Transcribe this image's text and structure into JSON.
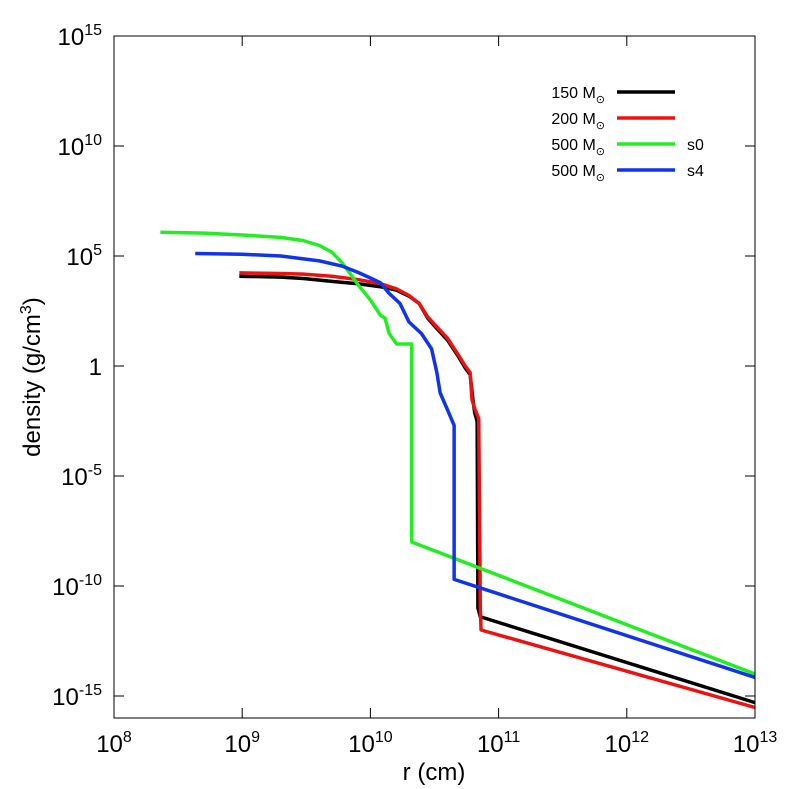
{
  "chart_data": {
    "type": "line",
    "xscale": "log",
    "yscale": "log",
    "xlim": [
      100000000.0,
      10000000000000.0
    ],
    "ylim": [
      1e-16,
      1000000000000000.0
    ],
    "xlabel": "r (cm)",
    "ylabel_pre": "density (g/cm",
    "ylabel_sup": "3",
    "ylabel_post": ")",
    "grid": false,
    "legend_position": "top-right",
    "x_ticks": [
      {
        "value": 100000000.0,
        "base": "10",
        "exp": "8"
      },
      {
        "value": 1000000000.0,
        "base": "10",
        "exp": "9"
      },
      {
        "value": 10000000000.0,
        "base": "10",
        "exp": "10"
      },
      {
        "value": 100000000000.0,
        "base": "10",
        "exp": "11"
      },
      {
        "value": 1000000000000.0,
        "base": "10",
        "exp": "12"
      },
      {
        "value": 10000000000000.0,
        "base": "10",
        "exp": "13"
      }
    ],
    "y_ticks": [
      {
        "value": 1000000000000000.0,
        "base": "10",
        "exp": "15"
      },
      {
        "value": 10000000000.0,
        "base": "10",
        "exp": "10"
      },
      {
        "value": 100000.0,
        "base": "10",
        "exp": "5"
      },
      {
        "value": 1,
        "base": "1",
        "exp": ""
      },
      {
        "value": 1e-05,
        "base": "10",
        "exp": "-5"
      },
      {
        "value": 1e-10,
        "base": "10",
        "exp": "-10"
      },
      {
        "value": 1e-15,
        "base": "10",
        "exp": "-15"
      }
    ],
    "series": [
      {
        "name": "150 M",
        "name_symbol": "⊙",
        "tag": "",
        "color": "#000000",
        "points": [
          [
            950000000.0,
            12000.0
          ],
          [
            2000000000.0,
            11000.0
          ],
          [
            3000000000.0,
            9500.0
          ],
          [
            5000000000.0,
            7000.0
          ],
          [
            8000000000.0,
            5500.0
          ],
          [
            12000000000.0,
            4000.0
          ],
          [
            16000000000.0,
            2800.0
          ],
          [
            20000000000.0,
            1500.0
          ],
          [
            24000000000.0,
            700.0
          ],
          [
            28000000000.0,
            150.0
          ],
          [
            33000000000.0,
            50.0
          ],
          [
            40000000000.0,
            15.0
          ],
          [
            48000000000.0,
            3
          ],
          [
            55000000000.0,
            0.8
          ],
          [
            60000000000.0,
            0.4
          ],
          [
            63000000000.0,
            0.03
          ],
          [
            65000000000.0,
            0.008
          ],
          [
            68000000000.0,
            0.003
          ],
          [
            69000000000.0,
            1e-11
          ],
          [
            72000000000.0,
            4e-12
          ],
          [
            10000000000000.0,
            5e-16
          ]
        ]
      },
      {
        "name": "200 M",
        "name_symbol": "⊙",
        "tag": "",
        "color": "#ee1111",
        "points": [
          [
            950000000.0,
            17000.0
          ],
          [
            2000000000.0,
            16000.0
          ],
          [
            3000000000.0,
            15000.0
          ],
          [
            5000000000.0,
            12000.0
          ],
          [
            8000000000.0,
            8500.0
          ],
          [
            12000000000.0,
            5500.0
          ],
          [
            16000000000.0,
            3200.0
          ],
          [
            20000000000.0,
            1600.0
          ],
          [
            24000000000.0,
            700.0
          ],
          [
            28000000000.0,
            170.0
          ],
          [
            33000000000.0,
            60.0
          ],
          [
            40000000000.0,
            18.0
          ],
          [
            48000000000.0,
            3.5
          ],
          [
            55000000000.0,
            1
          ],
          [
            60000000000.0,
            0.5
          ],
          [
            62000000000.0,
            0.03
          ],
          [
            65000000000.0,
            0.012
          ],
          [
            70000000000.0,
            0.004
          ],
          [
            72000000000.0,
            1e-11
          ],
          [
            73000000000.0,
            1e-12
          ],
          [
            10000000000000.0,
            3e-16
          ]
        ]
      },
      {
        "name": "500 M",
        "name_symbol": "⊙",
        "tag": "s0",
        "color": "#22ee22",
        "points": [
          [
            230000000.0,
            1200000.0
          ],
          [
            500000000.0,
            1100000.0
          ],
          [
            1000000000.0,
            900000.0
          ],
          [
            2000000000.0,
            700000.0
          ],
          [
            3000000000.0,
            500000.0
          ],
          [
            4000000000.0,
            300000.0
          ],
          [
            5000000000.0,
            150000.0
          ],
          [
            6000000000.0,
            50000.0
          ],
          [
            7000000000.0,
            15000.0
          ],
          [
            8000000000.0,
            5000.0
          ],
          [
            10000000000.0,
            1000.0
          ],
          [
            12000000000.0,
            200.0
          ],
          [
            13000000000.0,
            150.0
          ],
          [
            14000000000.0,
            30.0
          ],
          [
            16000000000.0,
            10.0
          ],
          [
            21000000000.0,
            10.0
          ],
          [
            21000000000.0,
            1e-08
          ],
          [
            10000000000000.0,
            1e-14
          ]
        ]
      },
      {
        "name": "500 M",
        "name_symbol": "⊙",
        "tag": "s4",
        "color": "#1133ee",
        "points": [
          [
            430000000.0,
            130000.0
          ],
          [
            1000000000.0,
            120000.0
          ],
          [
            2000000000.0,
            100000.0
          ],
          [
            4000000000.0,
            60000.0
          ],
          [
            6000000000.0,
            35000.0
          ],
          [
            8000000000.0,
            18000.0
          ],
          [
            10000000000.0,
            10000.0
          ],
          [
            12000000000.0,
            6000.0
          ],
          [
            14000000000.0,
            2000.0
          ],
          [
            17000000000.0,
            700.0
          ],
          [
            20000000000.0,
            100.0
          ],
          [
            25000000000.0,
            30.0
          ],
          [
            30000000000.0,
            6
          ],
          [
            33000000000.0,
            0.5
          ],
          [
            35000000000.0,
            0.06
          ],
          [
            40000000000.0,
            0.01
          ],
          [
            45000000000.0,
            0.002
          ],
          [
            45000000000.0,
            2e-10
          ],
          [
            10000000000000.0,
            7e-15
          ]
        ]
      }
    ]
  }
}
